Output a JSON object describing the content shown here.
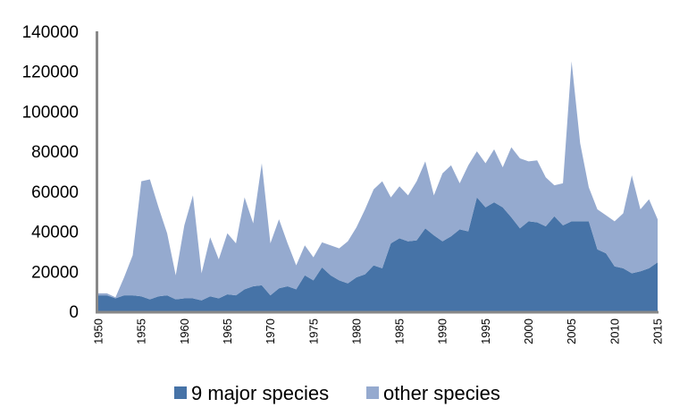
{
  "chart_data": {
    "type": "area",
    "stacked": true,
    "title": "",
    "xlabel": "",
    "ylabel": "",
    "x_start": 1950,
    "x_end": 2015,
    "ylim": [
      0,
      140000
    ],
    "yticks": [
      "0",
      "20000",
      "40000",
      "60000",
      "80000",
      "100000",
      "120000",
      "140000"
    ],
    "xticks": [
      "1950",
      "1955",
      "1960",
      "1965",
      "1970",
      "1975",
      "1980",
      "1985",
      "1990",
      "1995",
      "2000",
      "2005",
      "2010",
      "2015"
    ],
    "grid": false,
    "legend_position": "bottom",
    "series": [
      {
        "name": "9 major species",
        "color": "#4673A7",
        "values": [
          8000,
          8000,
          6500,
          8000,
          8000,
          7500,
          6000,
          7500,
          8000,
          6000,
          6500,
          6500,
          5500,
          7500,
          6500,
          8500,
          8000,
          11000,
          12500,
          13000,
          8000,
          11500,
          12500,
          11000,
          18000,
          15500,
          22000,
          18000,
          15500,
          14000,
          17000,
          18500,
          23000,
          21500,
          34000,
          36500,
          35000,
          35500,
          41500,
          38000,
          35000,
          37500,
          41000,
          40000,
          57000,
          52000,
          54500,
          52000,
          47000,
          41500,
          45000,
          44500,
          42500,
          47500,
          43000,
          45000,
          45000,
          45000,
          31000,
          29000,
          22500,
          21500,
          19000,
          20000,
          21500,
          24500
        ]
      },
      {
        "name": "other species",
        "color": "#95AACF",
        "values": [
          1000,
          1000,
          500,
          9000,
          20000,
          57500,
          60000,
          44500,
          31000,
          12000,
          36500,
          51500,
          13500,
          29500,
          19500,
          30500,
          26000,
          46000,
          31500,
          61000,
          26000,
          34500,
          21500,
          12000,
          15000,
          11500,
          12500,
          15000,
          16000,
          21000,
          25000,
          32500,
          38000,
          43500,
          23000,
          26000,
          23000,
          29500,
          33500,
          20000,
          34000,
          35500,
          23000,
          33000,
          23000,
          22000,
          26500,
          20000,
          35000,
          35000,
          30000,
          31000,
          24500,
          15500,
          21000,
          80000,
          39000,
          17000,
          20000,
          19000,
          22500,
          27500,
          49000,
          31000,
          34500,
          21500
        ]
      }
    ]
  }
}
